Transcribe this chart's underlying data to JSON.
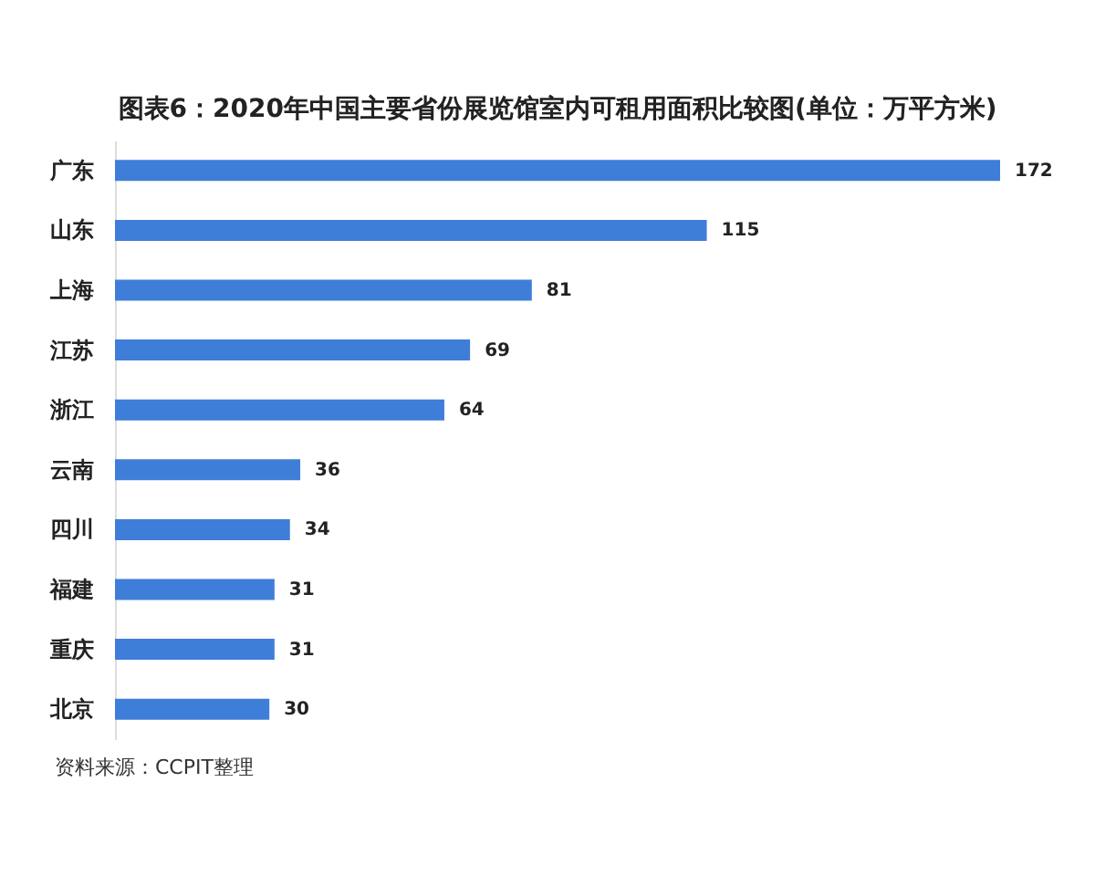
{
  "chart_data": {
    "type": "bar",
    "orientation": "horizontal",
    "title": "图表6：2020年中国主要省份展览馆室内可租用面积比较图(单位：万平方米)",
    "categories": [
      "广东",
      "山东",
      "上海",
      "江苏",
      "浙江",
      "云南",
      "四川",
      "福建",
      "重庆",
      "北京"
    ],
    "values": [
      172,
      115,
      81,
      69,
      64,
      36,
      34,
      31,
      31,
      30
    ],
    "color": "#3f7ed8",
    "data_labels": true,
    "tick_labels": "y",
    "annotations": [
      "资料来源：CCPIT整理"
    ]
  }
}
